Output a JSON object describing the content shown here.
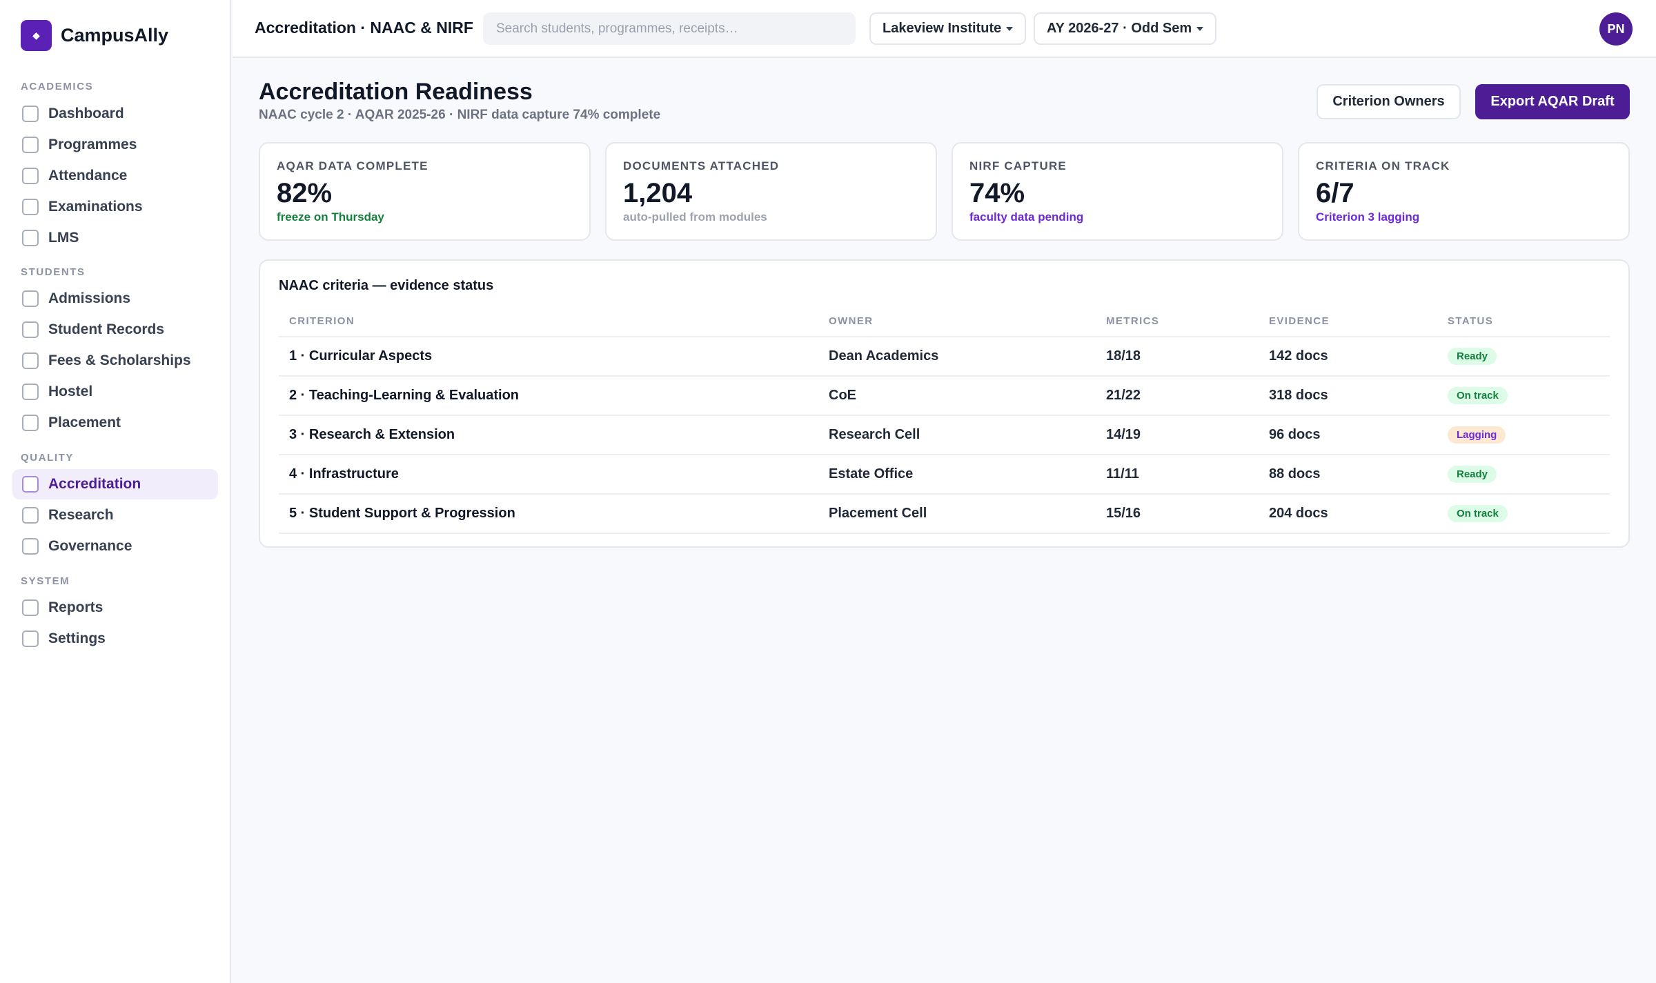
{
  "brand": {
    "name": "CampusAlly",
    "logo_glyph": "◆"
  },
  "sidebar": {
    "sections": [
      {
        "label": "ACADEMICS",
        "items": [
          "Dashboard",
          "Programmes",
          "Attendance",
          "Examinations",
          "LMS"
        ]
      },
      {
        "label": "STUDENTS",
        "items": [
          "Admissions",
          "Student Records",
          "Fees & Scholarships",
          "Hostel",
          "Placement"
        ]
      },
      {
        "label": "QUALITY",
        "items": [
          "Accreditation",
          "Research",
          "Governance"
        ]
      },
      {
        "label": "SYSTEM",
        "items": [
          "Reports",
          "Settings"
        ]
      }
    ],
    "active_item": "Accreditation"
  },
  "topbar": {
    "title": "Accreditation · NAAC & NIRF",
    "search_placeholder": "Search students, programmes, receipts…",
    "institute_select": "Lakeview Institute",
    "term_select": "AY 2026-27 · Odd Sem",
    "avatar_initials": "PN"
  },
  "header": {
    "title": "Accreditation Readiness",
    "subtitle": "NAAC cycle 2 · AQAR 2025-26 · NIRF data capture 74% complete",
    "criterion_owners_label": "Criterion Owners",
    "export_label": "Export AQAR Draft"
  },
  "kpis": [
    {
      "label": "AQAR DATA COMPLETE",
      "value": "82%",
      "note": "freeze on Thursday",
      "note_color": "#15803d"
    },
    {
      "label": "DOCUMENTS ATTACHED",
      "value": "1,204",
      "note": "auto-pulled from modules",
      "note_color": "#9ca3af"
    },
    {
      "label": "NIRF CAPTURE",
      "value": "74%",
      "note": "faculty data pending",
      "note_color": "#6d28d9"
    },
    {
      "label": "CRITERIA ON TRACK",
      "value": "6/7",
      "note": "Criterion 3 lagging",
      "note_color": "#6d28d9"
    }
  ],
  "criteria_table": {
    "title": "NAAC criteria — evidence status",
    "columns": [
      "CRITERION",
      "OWNER",
      "METRICS",
      "EVIDENCE",
      "STATUS"
    ],
    "rows": [
      {
        "criterion": "1 · Curricular Aspects",
        "owner": "Dean Academics",
        "metrics": "18/18",
        "evidence": "142 docs",
        "status": "Ready"
      },
      {
        "criterion": "2 · Teaching-Learning & Evaluation",
        "owner": "CoE",
        "metrics": "21/22",
        "evidence": "318 docs",
        "status": "On track"
      },
      {
        "criterion": "3 · Research & Extension",
        "owner": "Research Cell",
        "metrics": "14/19",
        "evidence": "96 docs",
        "status": "Lagging"
      },
      {
        "criterion": "4 · Infrastructure",
        "owner": "Estate Office",
        "metrics": "11/11",
        "evidence": "88 docs",
        "status": "Ready"
      },
      {
        "criterion": "5 · Student Support & Progression",
        "owner": "Placement Cell",
        "metrics": "15/16",
        "evidence": "204 docs",
        "status": "On track"
      }
    ]
  },
  "status_colors": {
    "Ready": {
      "bg": "#dcfce7",
      "fg": "#15803d"
    },
    "On track": {
      "bg": "#dcfce7",
      "fg": "#15803d"
    },
    "Lagging": {
      "bg": "#fde9d2",
      "fg": "#6d28d9"
    }
  },
  "colors": {
    "accent": "#4c1d95",
    "brand": "#5b21b6"
  }
}
